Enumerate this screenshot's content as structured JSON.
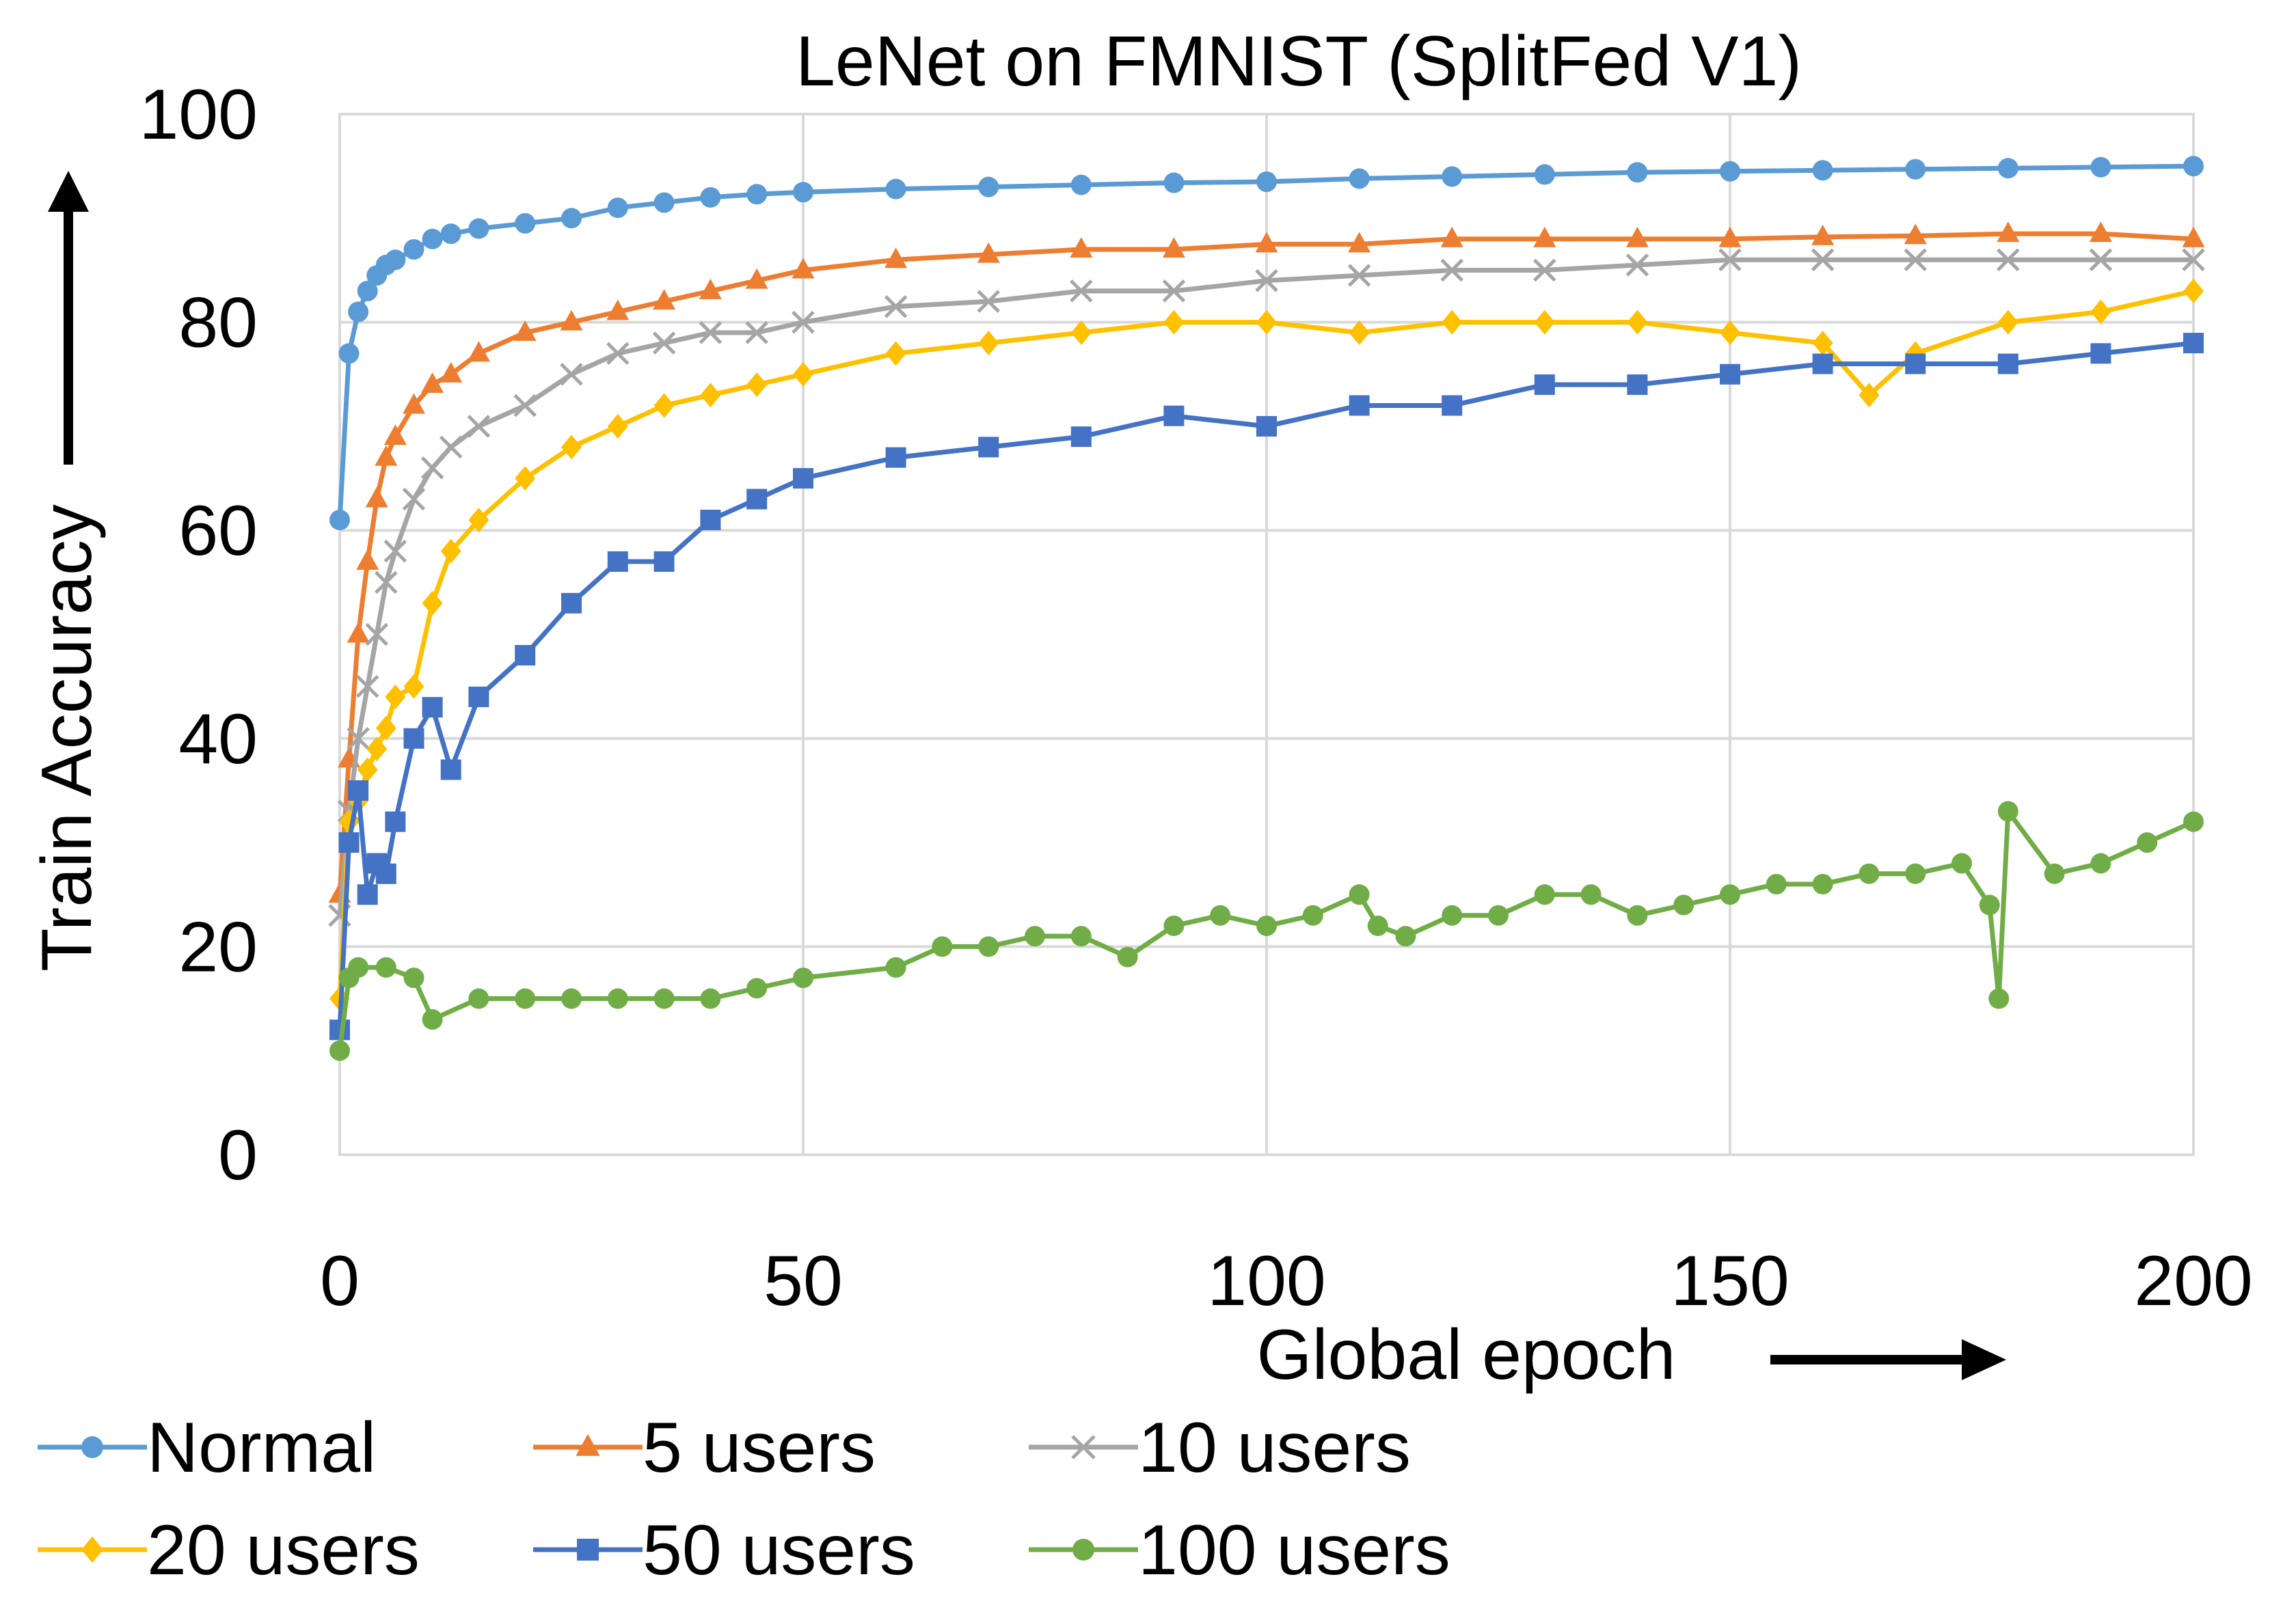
{
  "chart_data": {
    "type": "line",
    "title": "LeNet on FMNIST (SplitFed V1)",
    "xlabel": "Global epoch",
    "ylabel": "Train Accuracy",
    "xlim": [
      0,
      200
    ],
    "ylim": [
      0,
      100
    ],
    "xticks": [
      0,
      50,
      100,
      150,
      200
    ],
    "yticks": [
      0,
      20,
      40,
      60,
      80,
      100
    ],
    "grid": true,
    "legend_position": "bottom",
    "series": [
      {
        "name": "Normal",
        "color": "#5B9BD5",
        "marker": "circle",
        "x": [
          0,
          1,
          2,
          3,
          4,
          5,
          6,
          8,
          10,
          12,
          15,
          20,
          25,
          30,
          35,
          40,
          45,
          50,
          60,
          70,
          80,
          90,
          100,
          110,
          120,
          130,
          140,
          150,
          160,
          170,
          180,
          190,
          200
        ],
        "y": [
          61,
          77,
          81,
          83,
          84.5,
          85.5,
          86,
          87,
          88,
          88.5,
          89,
          89.5,
          90,
          91,
          91.5,
          92,
          92.3,
          92.5,
          92.8,
          93,
          93.2,
          93.4,
          93.5,
          93.8,
          94,
          94.2,
          94.4,
          94.5,
          94.6,
          94.7,
          94.8,
          94.9,
          95
        ]
      },
      {
        "name": "5 users",
        "color": "#ED7D31",
        "marker": "triangle",
        "x": [
          0,
          1,
          2,
          3,
          4,
          5,
          6,
          8,
          10,
          12,
          15,
          20,
          25,
          30,
          35,
          40,
          45,
          50,
          60,
          70,
          80,
          90,
          100,
          110,
          120,
          130,
          140,
          150,
          160,
          170,
          180,
          190,
          200
        ],
        "y": [
          25,
          38,
          50,
          57,
          63,
          67,
          69,
          72,
          74,
          75,
          77,
          79,
          80,
          81,
          82,
          83,
          84,
          85,
          86,
          86.5,
          87,
          87,
          87.5,
          87.5,
          88,
          88,
          88,
          88,
          88.2,
          88.3,
          88.5,
          88.5,
          88
        ]
      },
      {
        "name": "10 users",
        "color": "#A5A5A5",
        "marker": "x",
        "x": [
          0,
          1,
          2,
          3,
          4,
          5,
          6,
          8,
          10,
          12,
          15,
          20,
          25,
          30,
          35,
          40,
          45,
          50,
          60,
          70,
          80,
          90,
          100,
          110,
          120,
          130,
          140,
          150,
          160,
          170,
          180,
          190,
          200
        ],
        "y": [
          23,
          33,
          40,
          45,
          50,
          55,
          58,
          63,
          66,
          68,
          70,
          72,
          75,
          77,
          78,
          79,
          79,
          80,
          81.5,
          82,
          83,
          83,
          84,
          84.5,
          85,
          85,
          85.5,
          86,
          86,
          86,
          86,
          86,
          86
        ]
      },
      {
        "name": "20 users",
        "color": "#FFC000",
        "marker": "diamond",
        "x": [
          0,
          1,
          2,
          3,
          4,
          5,
          6,
          8,
          10,
          12,
          15,
          20,
          25,
          30,
          35,
          40,
          45,
          50,
          60,
          70,
          80,
          90,
          100,
          110,
          120,
          130,
          140,
          150,
          160,
          165,
          170,
          180,
          190,
          200
        ],
        "y": [
          15,
          32,
          34,
          37,
          39,
          41,
          44,
          45,
          53,
          58,
          61,
          65,
          68,
          70,
          72,
          73,
          74,
          75,
          77,
          78,
          79,
          80,
          80,
          79,
          80,
          80,
          80,
          79,
          78,
          73,
          77,
          80,
          81,
          83
        ]
      },
      {
        "name": "50 users",
        "color": "#4472C4",
        "marker": "square",
        "x": [
          0,
          1,
          2,
          3,
          4,
          5,
          6,
          8,
          10,
          12,
          15,
          20,
          25,
          30,
          35,
          40,
          45,
          50,
          60,
          70,
          80,
          90,
          100,
          110,
          120,
          130,
          140,
          150,
          160,
          170,
          180,
          190,
          200
        ],
        "y": [
          12,
          30,
          35,
          25,
          28,
          27,
          32,
          40,
          43,
          37,
          44,
          48,
          53,
          57,
          57,
          61,
          63,
          65,
          67,
          68,
          69,
          71,
          70,
          72,
          72,
          74,
          74,
          75,
          76,
          76,
          76,
          77,
          78
        ]
      },
      {
        "name": "100 users",
        "color": "#70AD47",
        "marker": "circle",
        "x": [
          0,
          1,
          2,
          5,
          8,
          10,
          15,
          20,
          25,
          30,
          35,
          40,
          45,
          50,
          60,
          65,
          70,
          75,
          80,
          85,
          90,
          95,
          100,
          105,
          110,
          112,
          115,
          120,
          125,
          130,
          135,
          140,
          145,
          150,
          155,
          160,
          165,
          170,
          175,
          178,
          179,
          180,
          185,
          190,
          195,
          200
        ],
        "y": [
          10,
          17,
          18,
          18,
          17,
          13,
          15,
          15,
          15,
          15,
          15,
          15,
          16,
          17,
          18,
          20,
          20,
          21,
          21,
          19,
          22,
          23,
          22,
          23,
          25,
          22,
          21,
          23,
          23,
          25,
          25,
          23,
          24,
          25,
          26,
          26,
          27,
          27,
          28,
          24,
          15,
          33,
          27,
          28,
          30,
          32
        ]
      }
    ]
  }
}
